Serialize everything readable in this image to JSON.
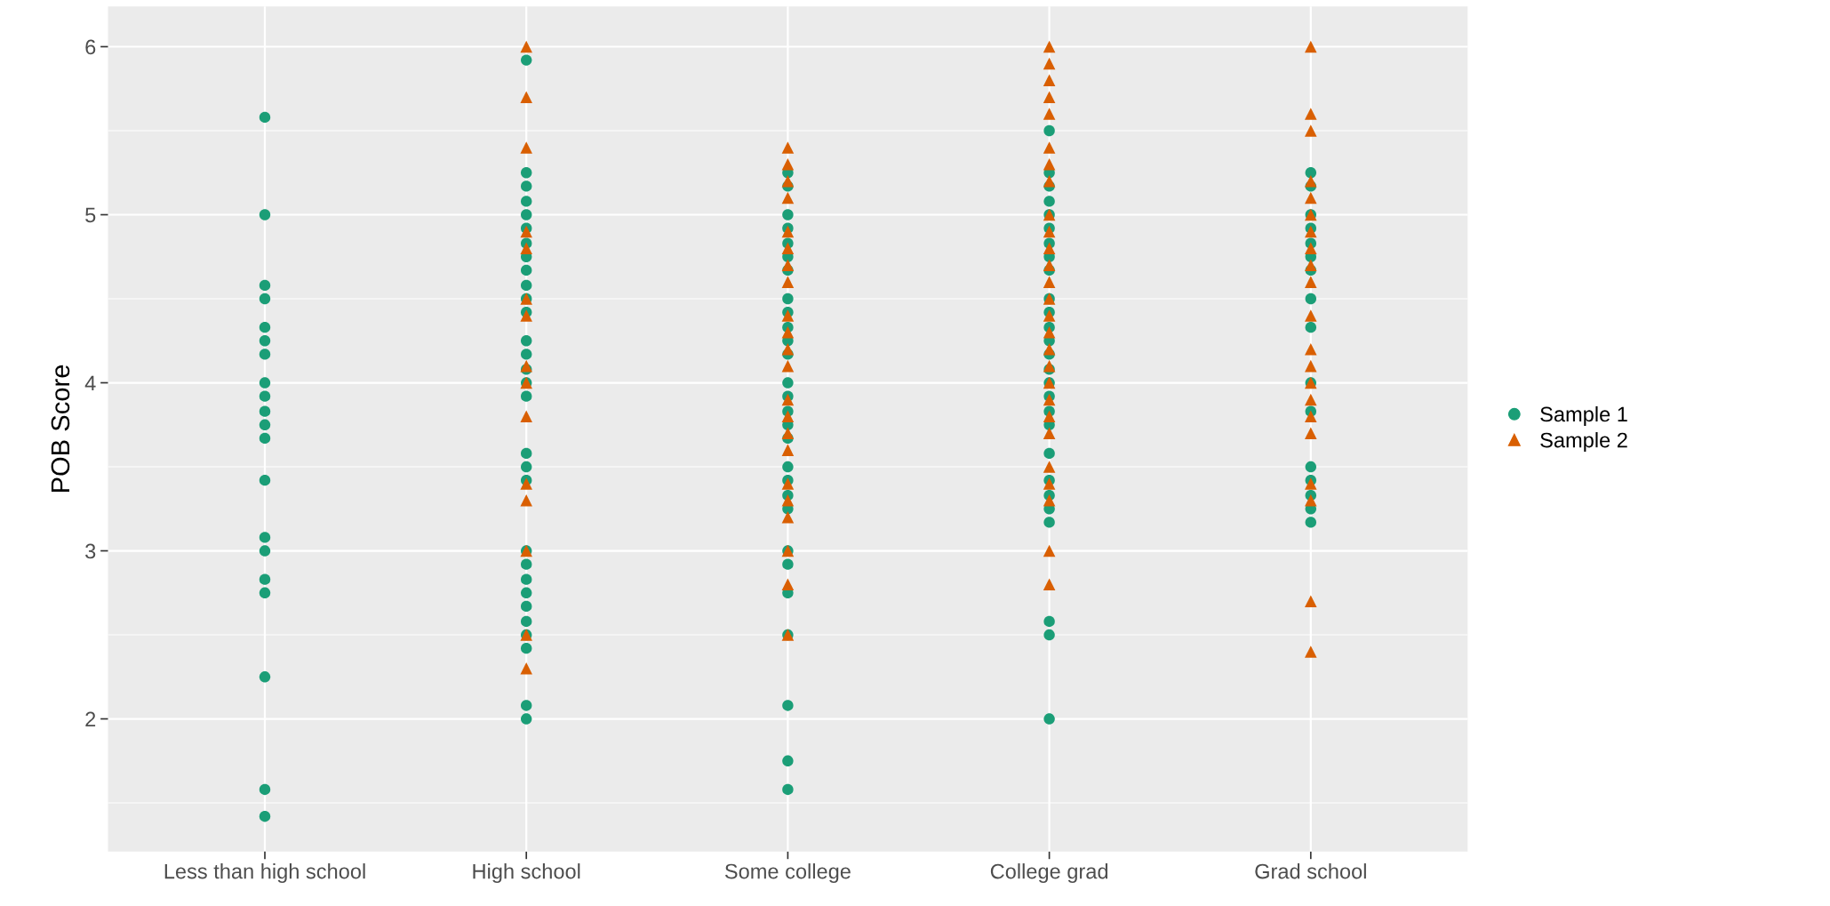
{
  "chart_data": {
    "type": "scatter",
    "ylabel": "POB Score",
    "categories": [
      "Less than high school",
      "High school",
      "Some college",
      "College grad",
      "Grad school"
    ],
    "ylim": [
      1.21,
      6.24
    ],
    "yticks": [
      2,
      3,
      4,
      5,
      6
    ],
    "grid": true,
    "legend": "right",
    "series": [
      {
        "name": "Sample 1",
        "color": "#1b9e77",
        "marker": "circle",
        "x": [
          "Less than high school",
          "Less than high school",
          "Less than high school",
          "Less than high school",
          "Less than high school",
          "Less than high school",
          "Less than high school",
          "Less than high school",
          "Less than high school",
          "Less than high school",
          "Less than high school",
          "Less than high school",
          "Less than high school",
          "Less than high school",
          "Less than high school",
          "Less than high school",
          "Less than high school",
          "Less than high school",
          "Less than high school",
          "Less than high school",
          "High school",
          "High school",
          "High school",
          "High school",
          "High school",
          "High school",
          "High school",
          "High school",
          "High school",
          "High school",
          "High school",
          "High school",
          "High school",
          "High school",
          "High school",
          "High school",
          "High school",
          "High school",
          "High school",
          "High school",
          "High school",
          "High school",
          "High school",
          "High school",
          "High school",
          "High school",
          "High school",
          "High school",
          "High school",
          "High school",
          "Some college",
          "Some college",
          "Some college",
          "Some college",
          "Some college",
          "Some college",
          "Some college",
          "Some college",
          "Some college",
          "Some college",
          "Some college",
          "Some college",
          "Some college",
          "Some college",
          "Some college",
          "Some college",
          "Some college",
          "Some college",
          "Some college",
          "Some college",
          "Some college",
          "Some college",
          "Some college",
          "Some college",
          "Some college",
          "Some college",
          "Some college",
          "Some college",
          "Some college",
          "Some college",
          "College grad",
          "College grad",
          "College grad",
          "College grad",
          "College grad",
          "College grad",
          "College grad",
          "College grad",
          "College grad",
          "College grad",
          "College grad",
          "College grad",
          "College grad",
          "College grad",
          "College grad",
          "College grad",
          "College grad",
          "College grad",
          "College grad",
          "College grad",
          "College grad",
          "College grad",
          "College grad",
          "College grad",
          "College grad",
          "College grad",
          "College grad",
          "College grad",
          "Grad school",
          "Grad school",
          "Grad school",
          "Grad school",
          "Grad school",
          "Grad school",
          "Grad school",
          "Grad school",
          "Grad school",
          "Grad school",
          "Grad school",
          "Grad school",
          "Grad school",
          "Grad school",
          "Grad school",
          "Grad school"
        ],
        "values": [
          5.58,
          5.0,
          4.58,
          4.5,
          4.33,
          4.25,
          4.17,
          4.0,
          3.92,
          3.83,
          3.75,
          3.67,
          3.42,
          3.08,
          3.0,
          2.83,
          2.75,
          2.25,
          1.58,
          1.42,
          5.92,
          5.25,
          5.17,
          5.08,
          5.0,
          4.92,
          4.83,
          4.75,
          4.67,
          4.58,
          4.5,
          4.42,
          4.25,
          4.17,
          4.08,
          4.0,
          3.92,
          3.58,
          3.5,
          3.42,
          3.0,
          2.92,
          2.83,
          2.75,
          2.67,
          2.58,
          2.5,
          2.42,
          2.08,
          2.0,
          5.25,
          5.17,
          5.0,
          4.92,
          4.83,
          4.75,
          4.67,
          null,
          4.5,
          4.42,
          4.33,
          4.25,
          4.17,
          4.0,
          3.92,
          3.83,
          3.75,
          3.67,
          null,
          3.5,
          3.42,
          3.33,
          3.25,
          3.0,
          2.92,
          2.75,
          2.5,
          2.08,
          1.75,
          1.58,
          5.5,
          5.25,
          5.17,
          5.08,
          5.0,
          4.92,
          4.83,
          4.75,
          4.67,
          null,
          4.5,
          4.42,
          4.33,
          4.25,
          4.17,
          4.08,
          4.0,
          3.92,
          3.83,
          3.75,
          3.58,
          3.42,
          3.33,
          3.25,
          3.17,
          2.58,
          2.5,
          2.0,
          5.25,
          5.17,
          5.0,
          4.92,
          4.83,
          4.75,
          4.67,
          4.5,
          4.33,
          4.0,
          3.83,
          3.5,
          3.42,
          3.33,
          3.25,
          3.17
        ]
      },
      {
        "name": "Sample 2",
        "color": "#d95f02",
        "marker": "triangle",
        "x": [
          "High school",
          "High school",
          "High school",
          "High school",
          "High school",
          "High school",
          "High school",
          "High school",
          "High school",
          "High school",
          "High school",
          "High school",
          "High school",
          "High school",
          "High school",
          "Some college",
          "Some college",
          "Some college",
          "Some college",
          "Some college",
          "Some college",
          "Some college",
          "Some college",
          "Some college",
          "Some college",
          "Some college",
          "Some college",
          "Some college",
          "Some college",
          "Some college",
          "Some college",
          "Some college",
          "Some college",
          "Some college",
          "Some college",
          "Some college",
          "Some college",
          "College grad",
          "College grad",
          "College grad",
          "College grad",
          "College grad",
          "College grad",
          "College grad",
          "College grad",
          "College grad",
          "College grad",
          "College grad",
          "College grad",
          "College grad",
          "College grad",
          "College grad",
          "College grad",
          "College grad",
          "College grad",
          "College grad",
          "College grad",
          "College grad",
          "College grad",
          "College grad",
          "College grad",
          "College grad",
          "College grad",
          "College grad",
          "Grad school",
          "Grad school",
          "Grad school",
          "Grad school",
          "Grad school",
          "Grad school",
          "Grad school",
          "Grad school",
          "Grad school",
          "Grad school",
          "Grad school",
          "Grad school",
          "Grad school",
          "Grad school",
          "Grad school",
          "Grad school",
          "Grad school",
          "Grad school",
          "Grad school",
          "Grad school",
          "Grad school"
        ],
        "values": [
          6.0,
          5.7,
          5.4,
          4.9,
          4.8,
          4.5,
          4.4,
          4.1,
          4.0,
          3.8,
          3.4,
          3.3,
          3.0,
          2.5,
          2.3,
          5.4,
          5.3,
          5.2,
          5.1,
          4.9,
          4.8,
          4.7,
          4.6,
          4.4,
          4.3,
          4.2,
          4.1,
          3.9,
          3.8,
          3.7,
          3.6,
          3.4,
          3.3,
          3.2,
          3.0,
          2.8,
          2.5,
          6.0,
          5.9,
          5.8,
          5.7,
          5.6,
          5.4,
          5.3,
          5.2,
          5.0,
          4.9,
          4.8,
          4.7,
          4.6,
          4.5,
          4.4,
          4.3,
          4.2,
          4.1,
          4.0,
          3.9,
          3.8,
          3.7,
          3.5,
          3.4,
          3.3,
          3.0,
          2.8,
          6.0,
          5.6,
          5.5,
          5.2,
          5.1,
          5.0,
          4.9,
          4.8,
          4.7,
          4.6,
          4.4,
          4.2,
          4.1,
          4.0,
          3.9,
          3.8,
          3.7,
          3.4,
          3.3,
          2.7,
          2.4
        ]
      }
    ]
  }
}
